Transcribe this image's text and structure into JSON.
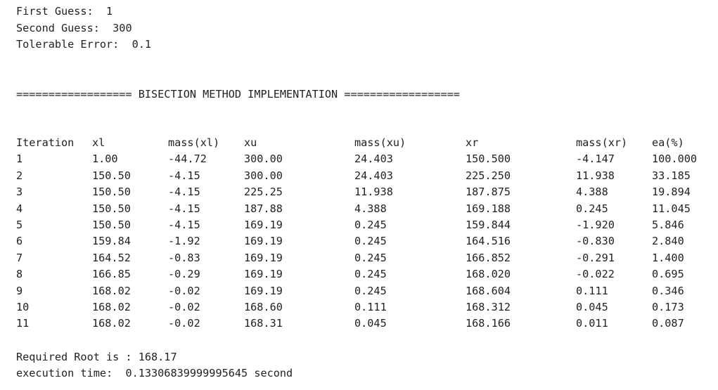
{
  "inputs": {
    "first_guess": "First Guess:  1",
    "second_guess": "Second Guess:  300",
    "tolerable_error": "Tolerable Error:  0.1"
  },
  "banner": "================== BISECTION METHOD IMPLEMENTATION ==================",
  "table": {
    "headers": [
      "Iteration",
      "xl",
      "mass(xl)",
      "xu",
      "mass(xu)",
      "xr",
      "mass(xr)",
      "ea(%)"
    ],
    "rows": [
      [
        "1",
        "1.00",
        "-44.72",
        "300.00",
        "24.403",
        "150.500",
        "-4.147",
        "100.000"
      ],
      [
        "2",
        "150.50",
        "-4.15",
        "300.00",
        "24.403",
        "225.250",
        "11.938",
        "33.185"
      ],
      [
        "3",
        "150.50",
        "-4.15",
        "225.25",
        "11.938",
        "187.875",
        "4.388",
        "19.894"
      ],
      [
        "4",
        "150.50",
        "-4.15",
        "187.88",
        "4.388",
        "169.188",
        "0.245",
        "11.045"
      ],
      [
        "5",
        "150.50",
        "-4.15",
        "169.19",
        "0.245",
        "159.844",
        "-1.920",
        "5.846"
      ],
      [
        "6",
        "159.84",
        "-1.92",
        "169.19",
        "0.245",
        "164.516",
        "-0.830",
        "2.840"
      ],
      [
        "7",
        "164.52",
        "-0.83",
        "169.19",
        "0.245",
        "166.852",
        "-0.291",
        "1.400"
      ],
      [
        "8",
        "166.85",
        "-0.29",
        "169.19",
        "0.245",
        "168.020",
        "-0.022",
        "0.695"
      ],
      [
        "9",
        "168.02",
        "-0.02",
        "169.19",
        "0.245",
        "168.604",
        "0.111",
        "0.346"
      ],
      [
        "10",
        "168.02",
        "-0.02",
        "168.60",
        "0.111",
        "168.312",
        "0.045",
        "0.173"
      ],
      [
        "11",
        "168.02",
        "-0.02",
        "168.31",
        "0.045",
        "168.166",
        "0.011",
        "0.087"
      ]
    ]
  },
  "result": {
    "root": "Required Root is : 168.17",
    "execution_time": "execution time:  0.13306839999995645 second"
  }
}
